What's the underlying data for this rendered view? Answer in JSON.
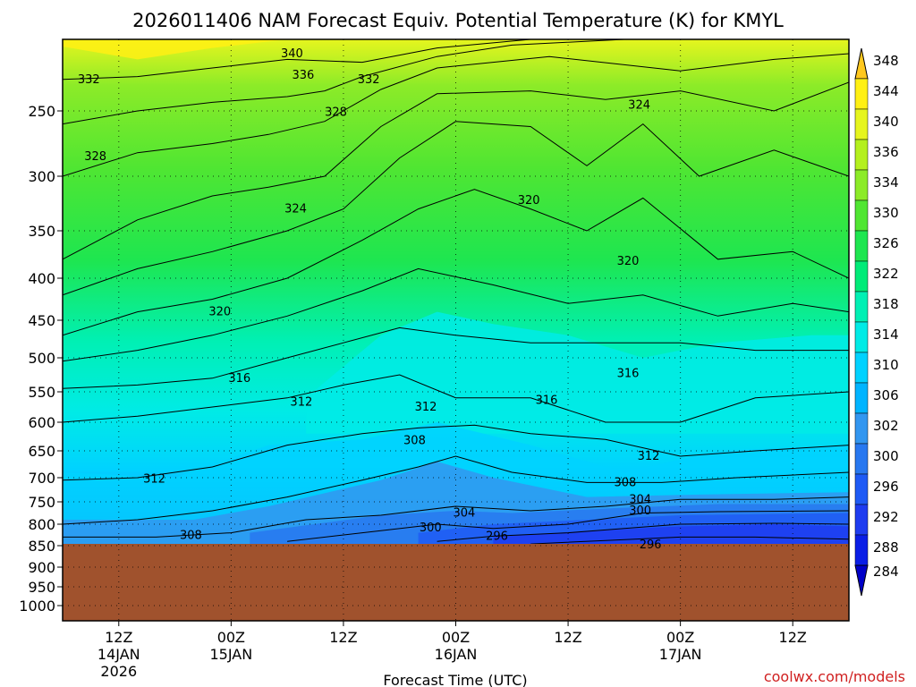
{
  "chart_data": {
    "type": "heatmap",
    "title": "2026011406 NAM Forecast Equiv. Potential Temperature (K) for KMYL",
    "xlabel": "Forecast Time (UTC)",
    "ylabel": "",
    "y_axis_scale": "pressure (log-like), inverted",
    "y_ticks": [
      250,
      300,
      350,
      400,
      450,
      500,
      550,
      600,
      650,
      700,
      750,
      800,
      850,
      900,
      950,
      1000
    ],
    "ylim": [
      1000,
      200
    ],
    "x_ticks": [
      {
        "hour": 6,
        "label": "12Z",
        "date": "14JAN",
        "year": "2026"
      },
      {
        "hour": 18,
        "label": "00Z",
        "date": "15JAN",
        "year": ""
      },
      {
        "hour": 30,
        "label": "12Z",
        "date": "",
        "year": ""
      },
      {
        "hour": 42,
        "label": "00Z",
        "date": "16JAN",
        "year": ""
      },
      {
        "hour": 54,
        "label": "12Z",
        "date": "",
        "year": ""
      },
      {
        "hour": 66,
        "label": "00Z",
        "date": "17JAN",
        "year": ""
      },
      {
        "hour": 78,
        "label": "12Z",
        "date": "",
        "year": ""
      }
    ],
    "xlim": [
      0,
      84
    ],
    "grid": true,
    "ground_level_hpa": 850,
    "ground_color": "#a0522d",
    "colorbar": {
      "levels": [
        284,
        288,
        292,
        296,
        300,
        302,
        306,
        310,
        314,
        318,
        322,
        326,
        330,
        334,
        336,
        340,
        344,
        348
      ],
      "colors": [
        "#0000c8",
        "#0a1ee6",
        "#1e3cf0",
        "#1e5af5",
        "#2878f0",
        "#3296f0",
        "#00b4ff",
        "#00d2ff",
        "#00ebe6",
        "#00f0b4",
        "#00eb78",
        "#1ee650",
        "#50e632",
        "#8ceb28",
        "#b4f01e",
        "#e6f51e",
        "#fff014",
        "#ffc81e"
      ],
      "position": "right"
    },
    "contour_labels": [
      {
        "text": "340",
        "hour": 24.5,
        "p": 210
      },
      {
        "text": "336",
        "hour": 25.7,
        "p": 225
      },
      {
        "text": "332",
        "hour": 2.8,
        "p": 228
      },
      {
        "text": "332",
        "hour": 32.7,
        "p": 228
      },
      {
        "text": "328",
        "hour": 29.2,
        "p": 251
      },
      {
        "text": "328",
        "hour": 3.5,
        "p": 285
      },
      {
        "text": "324",
        "hour": 61.6,
        "p": 246
      },
      {
        "text": "324",
        "hour": 24.9,
        "p": 330
      },
      {
        "text": "320",
        "hour": 49.8,
        "p": 322
      },
      {
        "text": "320",
        "hour": 60.4,
        "p": 382
      },
      {
        "text": "320",
        "hour": 16.8,
        "p": 440
      },
      {
        "text": "316",
        "hour": 18.9,
        "p": 530
      },
      {
        "text": "316",
        "hour": 60.4,
        "p": 523
      },
      {
        "text": "316",
        "hour": 51.7,
        "p": 564
      },
      {
        "text": "312",
        "hour": 25.5,
        "p": 567
      },
      {
        "text": "312",
        "hour": 38.8,
        "p": 575
      },
      {
        "text": "312",
        "hour": 62.6,
        "p": 660
      },
      {
        "text": "312",
        "hour": 9.8,
        "p": 703
      },
      {
        "text": "308",
        "hour": 37.6,
        "p": 632
      },
      {
        "text": "308",
        "hour": 60.1,
        "p": 710
      },
      {
        "text": "308",
        "hour": 13.7,
        "p": 826
      },
      {
        "text": "304",
        "hour": 61.7,
        "p": 745
      },
      {
        "text": "304",
        "hour": 42.9,
        "p": 775
      },
      {
        "text": "300",
        "hour": 61.7,
        "p": 770
      },
      {
        "text": "300",
        "hour": 39.3,
        "p": 808
      },
      {
        "text": "296",
        "hour": 46.4,
        "p": 828
      },
      {
        "text": "296",
        "hour": 62.8,
        "p": 848
      }
    ]
  },
  "credit": "coolwx.com/models"
}
